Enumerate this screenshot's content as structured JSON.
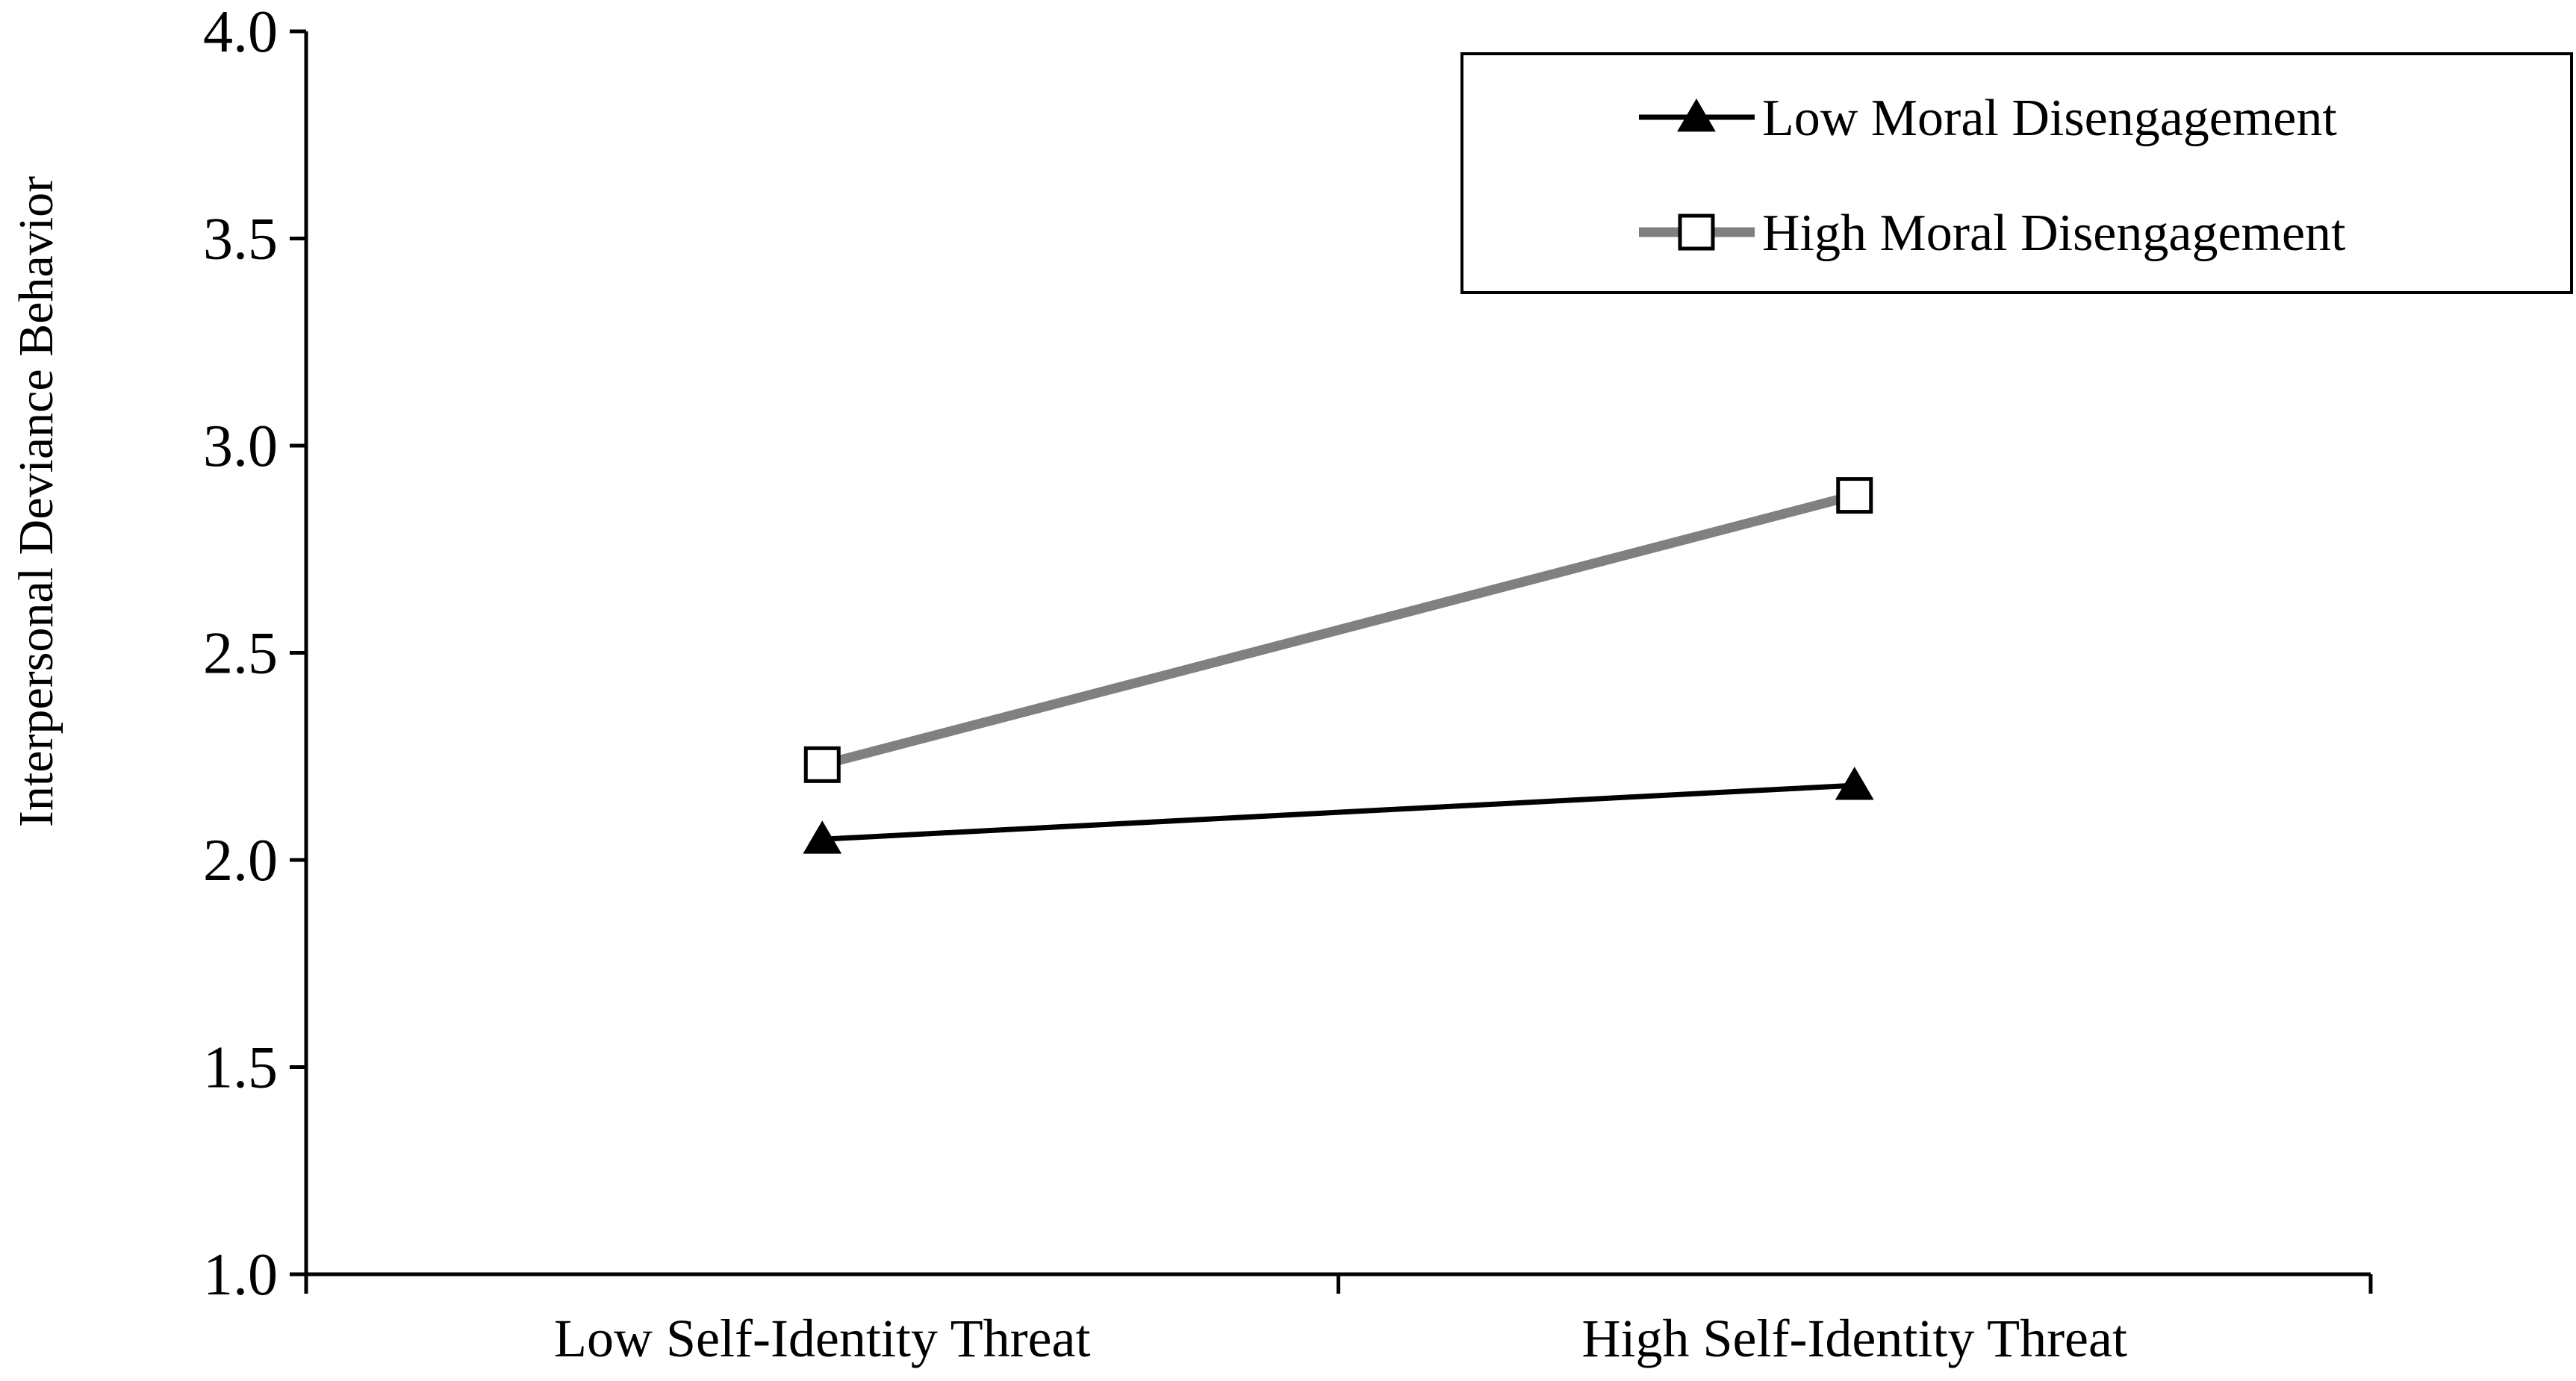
{
  "chart_data": {
    "type": "line",
    "title": "",
    "xlabel": "",
    "ylabel": "Interpersonal Deviance Behavior",
    "categories": [
      "Low Self-Identity Threat",
      "High Self-Identity Threat"
    ],
    "ylim": [
      1.0,
      4.0
    ],
    "yticks": [
      "1.0",
      "1.5",
      "2.0",
      "2.5",
      "3.0",
      "3.5",
      "4.0"
    ],
    "grid": false,
    "legend_position": "top-right",
    "series": [
      {
        "name": "Low Moral Disengagement",
        "values": [
          2.05,
          2.18
        ],
        "color": "#000000",
        "marker": "filled-triangle"
      },
      {
        "name": "High Moral Disengagement",
        "values": [
          2.23,
          2.88
        ],
        "color": "#808080",
        "marker": "open-square"
      }
    ]
  }
}
